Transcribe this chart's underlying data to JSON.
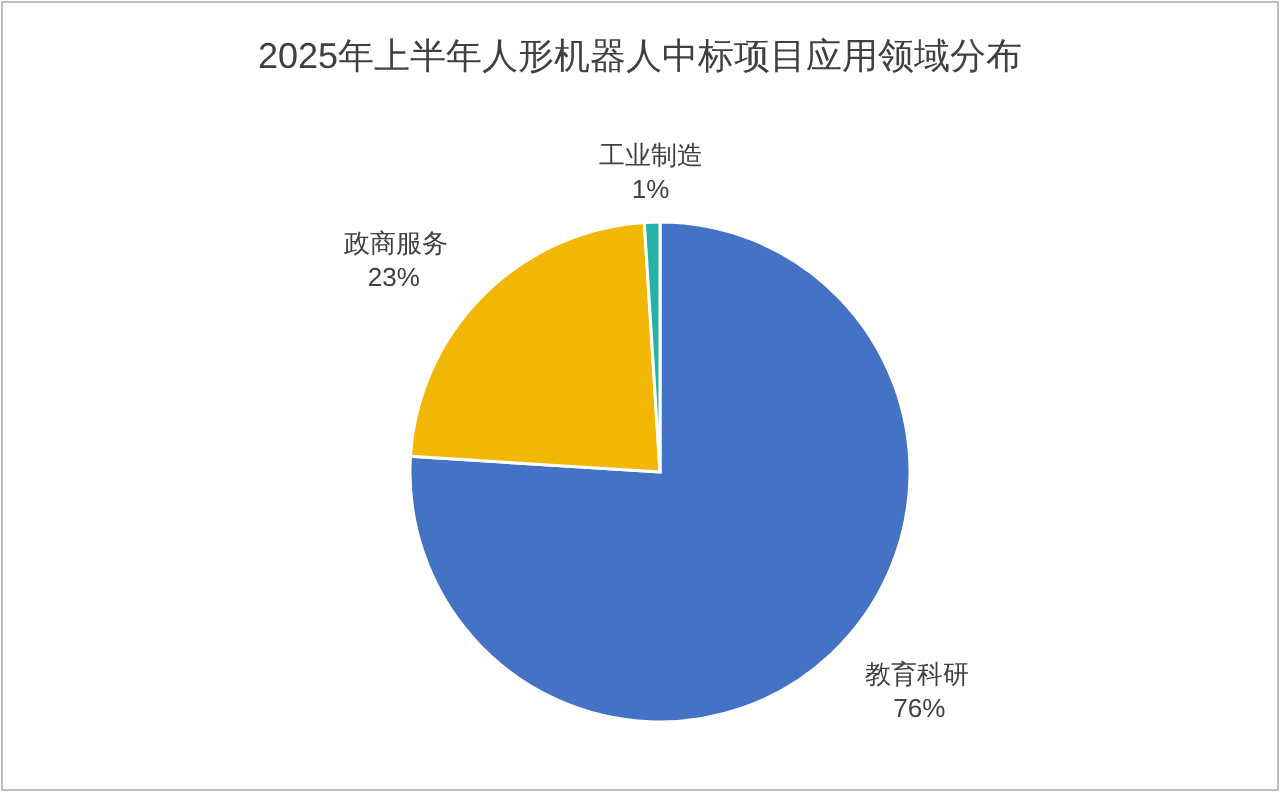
{
  "chart_data": {
    "type": "pie",
    "title": "2025年上半年人形机器人中标项目应用领域分布",
    "categories": [
      "教育科研",
      "政商服务",
      "工业制造"
    ],
    "values": [
      76,
      23,
      1
    ],
    "value_labels": [
      "76%",
      "23%",
      "1%"
    ],
    "colors": [
      "#4472c4",
      "#f2b705",
      "#26b1a5"
    ]
  }
}
